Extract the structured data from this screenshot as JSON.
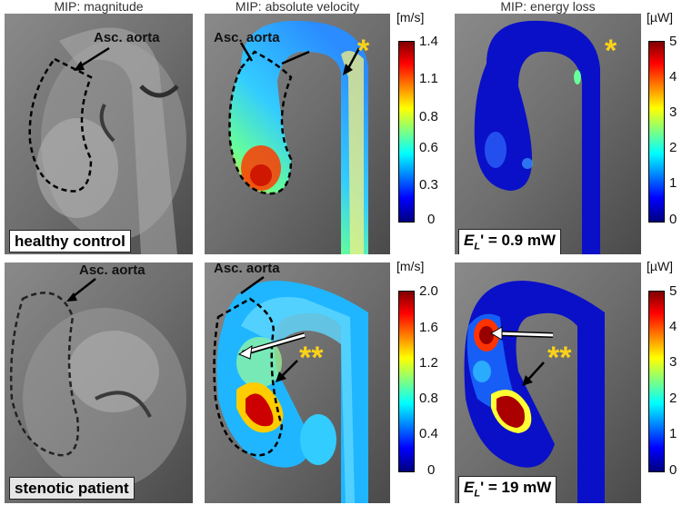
{
  "columns": {
    "magnitude_title": "MIP: magnitude",
    "velocity_title": "MIP: absolute velocity",
    "energy_title": "MIP: energy loss"
  },
  "rows": {
    "healthy": {
      "label": "healthy control",
      "asc_aorta_mag": "Asc. aorta",
      "asc_aorta_vel": "Asc. aorta",
      "star": "*",
      "star_energy": "*",
      "energy_loss_label": "E",
      "energy_loss_sub": "L",
      "energy_loss_value": "' = 0.9 mW",
      "velocity_scale": {
        "unit": "[m/s]",
        "ticks": [
          "1.4",
          "1.1",
          "0.8",
          "0.6",
          "0.3",
          "0"
        ]
      },
      "energy_scale": {
        "unit": "[µW]",
        "ticks": [
          "5",
          "4",
          "3",
          "2",
          "1",
          "0"
        ]
      }
    },
    "stenotic": {
      "label": "stenotic patient",
      "asc_aorta_mag": "Asc. aorta",
      "asc_aorta_vel": "Asc. aorta",
      "star": "**",
      "star_energy": "**",
      "energy_loss_label": "E",
      "energy_loss_sub": "L",
      "energy_loss_value": "' = 19 mW",
      "velocity_scale": {
        "unit": "[m/s]",
        "ticks": [
          "2.0",
          "1.6",
          "1.2",
          "0.8",
          "0.4",
          "0"
        ]
      },
      "energy_scale": {
        "unit": "[µW]",
        "ticks": [
          "5",
          "4",
          "3",
          "2",
          "1",
          "0"
        ]
      }
    }
  },
  "colors": {
    "jet_dark_red": "#7f0000",
    "jet_red": "#ff0000",
    "jet_yellow": "#ffff00",
    "jet_cyan": "#00ffff",
    "jet_blue": "#0000ff",
    "jet_dark_blue": "#00007f",
    "star_color": "#ffd21a"
  }
}
